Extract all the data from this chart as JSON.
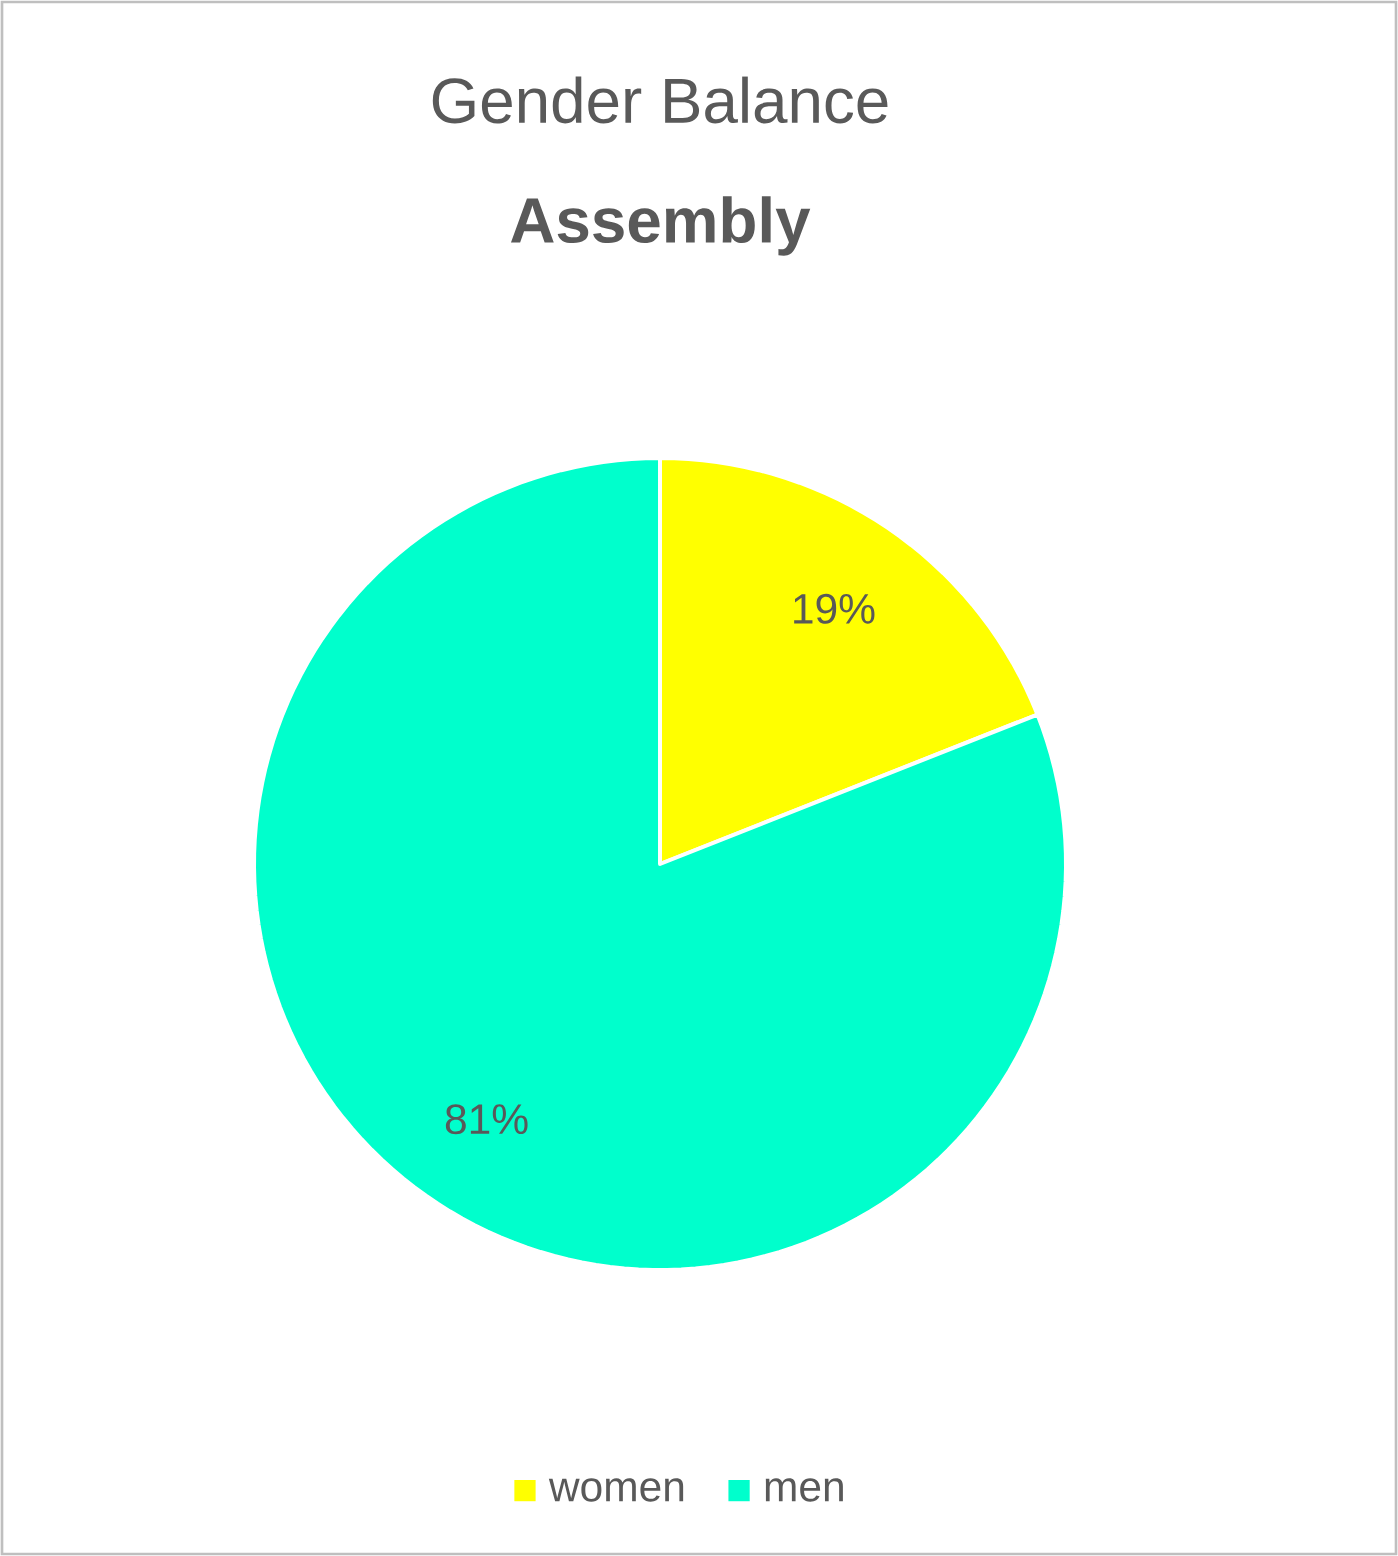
{
  "chart_data": {
    "type": "pie",
    "title": "Gender Balance",
    "subtitle": "**Assembly**",
    "categories": [
      "women",
      "men"
    ],
    "values": [
      19,
      81
    ],
    "colors": [
      "#ffff00",
      "#00ffcc"
    ],
    "value_labels": [
      "19%",
      "81%"
    ],
    "legend": "bottom"
  }
}
